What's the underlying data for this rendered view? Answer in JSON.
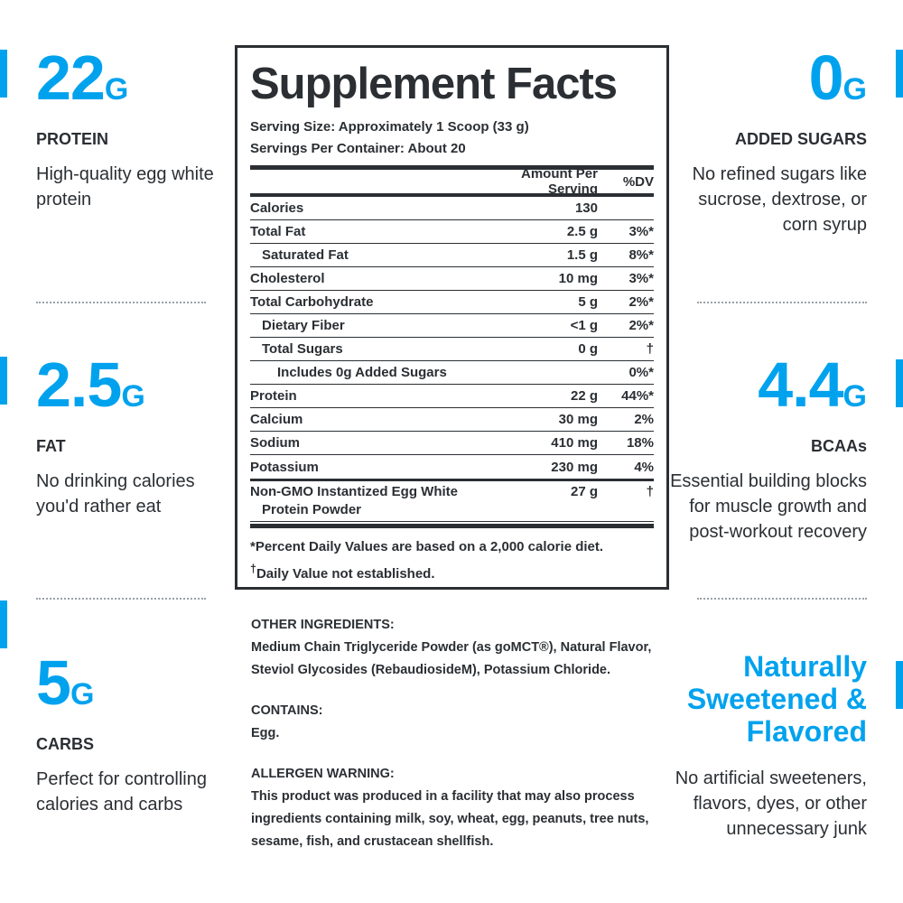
{
  "colors": {
    "accent": "#00a2ee",
    "text": "#2b2f33"
  },
  "left": [
    {
      "value": "22",
      "unit": "G",
      "label": "PROTEIN",
      "desc": "High-quality egg white protein"
    },
    {
      "value": "2.5",
      "unit": "G",
      "label": "FAT",
      "desc": "No drinking calories you'd rather eat"
    },
    {
      "value": "5",
      "unit": "G",
      "label": "CARBS",
      "desc": "Perfect for controlling calories and carbs"
    }
  ],
  "right": [
    {
      "value": "0",
      "unit": "G",
      "label": "ADDED SUGARS",
      "desc": "No refined sugars like sucrose, dextrose, or corn syrup"
    },
    {
      "value": "4.4",
      "unit": "G",
      "label": "BCAAs",
      "desc": "Essential building blocks for muscle growth and post-workout recovery"
    },
    {
      "headline": "Naturally Sweetened & Flavored",
      "desc": "No artificial sweeteners, flavors, dyes, or other unnecessary junk"
    }
  ],
  "facts": {
    "title": "Supplement Facts",
    "serving_size": "Serving Size: Approximately 1 Scoop (33 g)",
    "servings": "Servings Per Container: About 20",
    "col_amount": "Amount Per Serving",
    "col_dv": "%DV",
    "rows": [
      {
        "name": "Calories",
        "amount": "130",
        "dv": ""
      },
      {
        "name": "Total Fat",
        "amount": "2.5 g",
        "dv": "3%*"
      },
      {
        "name": "Saturated Fat",
        "amount": "1.5 g",
        "dv": "8%*"
      },
      {
        "name": "Cholesterol",
        "amount": "10 mg",
        "dv": "3%*"
      },
      {
        "name": "Total Carbohydrate",
        "amount": "5 g",
        "dv": "2%*"
      },
      {
        "name": "Dietary Fiber",
        "amount": "<1 g",
        "dv": "2%*"
      },
      {
        "name": "Total Sugars",
        "amount": "0 g",
        "dv": "†"
      },
      {
        "name": "Includes 0g Added Sugars",
        "amount": "",
        "dv": "0%*"
      },
      {
        "name": "Protein",
        "amount": "22 g",
        "dv": "44%*"
      },
      {
        "name": "Calcium",
        "amount": "30 mg",
        "dv": "2%"
      },
      {
        "name": "Sodium",
        "amount": "410 mg",
        "dv": "18%"
      },
      {
        "name": "Potassium",
        "amount": "230 mg",
        "dv": "4%"
      }
    ],
    "ingredient": {
      "name1": "Non-GMO Instantized Egg White",
      "name2": "Protein Powder",
      "amount": "27 g",
      "dv": "†"
    },
    "foot1": "*Percent Daily Values are based on a 2,000 calorie diet.",
    "foot2_mark": "†",
    "foot2": "Daily Value not established."
  },
  "ingredients": {
    "other_h": "OTHER INGREDIENTS:",
    "other": "Medium Chain Triglyceride Powder (as goMCT®), Natural Flavor, Steviol Glycosides (RebaudiosideM), Potassium Chloride.",
    "contains_h": "CONTAINS:",
    "contains": "Egg.",
    "allergen_h": "ALLERGEN WARNING:",
    "allergen": "This product was produced in a facility that may also process ingredients containing milk, soy, wheat, egg, peanuts, tree nuts, sesame, fish, and crustacean shellfish."
  }
}
